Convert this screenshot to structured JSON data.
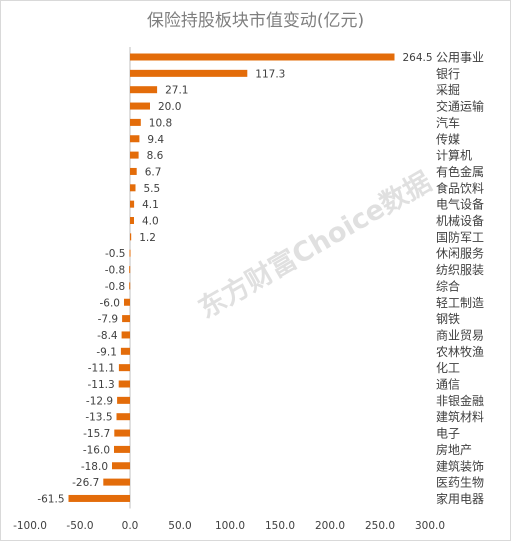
{
  "chart_data": {
    "type": "bar",
    "orientation": "horizontal",
    "title": "保险持股板块市值变动(亿元)",
    "categories": [
      "公用事业",
      "银行",
      "采掘",
      "交通运输",
      "汽车",
      "传媒",
      "计算机",
      "有色金属",
      "食品饮料",
      "电气设备",
      "机械设备",
      "国防军工",
      "休闲服务",
      "纺织服装",
      "综合",
      "轻工制造",
      "钢铁",
      "商业贸易",
      "农林牧渔",
      "化工",
      "通信",
      "非银金融",
      "建筑材料",
      "电子",
      "房地产",
      "建筑装饰",
      "医药生物",
      "家用电器"
    ],
    "values": [
      264.5,
      117.3,
      27.1,
      20.0,
      10.8,
      9.4,
      8.6,
      6.7,
      5.5,
      4.1,
      4.0,
      1.2,
      -0.5,
      -0.8,
      -0.8,
      -6.0,
      -7.9,
      -8.4,
      -9.1,
      -11.1,
      -11.3,
      -12.9,
      -13.5,
      -15.7,
      -16.0,
      -18.0,
      -26.7,
      -61.5
    ],
    "value_labels": [
      "264.5",
      "117.3",
      "27.1",
      "20.0",
      "10.8",
      "9.4",
      "8.6",
      "6.7",
      "5.5",
      "4.1",
      "4.0",
      "1.2",
      "-0.5",
      "-0.8",
      "-0.8",
      "-6.0",
      "-7.9",
      "-8.4",
      "-9.1",
      "-11.1",
      "-11.3",
      "-12.9",
      "-13.5",
      "-15.7",
      "-16.0",
      "-18.0",
      "-26.7",
      "-61.5"
    ],
    "xlim": [
      -100,
      300
    ],
    "x_ticks": [
      -100,
      -50,
      0,
      50,
      100,
      150,
      200,
      250,
      300
    ],
    "x_tick_labels": [
      "-100.0",
      "-50.0",
      "0.0",
      "50.0",
      "100.0",
      "150.0",
      "200.0",
      "250.0",
      "300.0"
    ],
    "grid": false,
    "bar_color": "#e36c0a"
  },
  "watermark": "东方财富Choice数据",
  "colors": {
    "bar": "#e36c0a",
    "text": "#404040",
    "title": "#7f7f7f",
    "axis": "#bfbfbf"
  }
}
